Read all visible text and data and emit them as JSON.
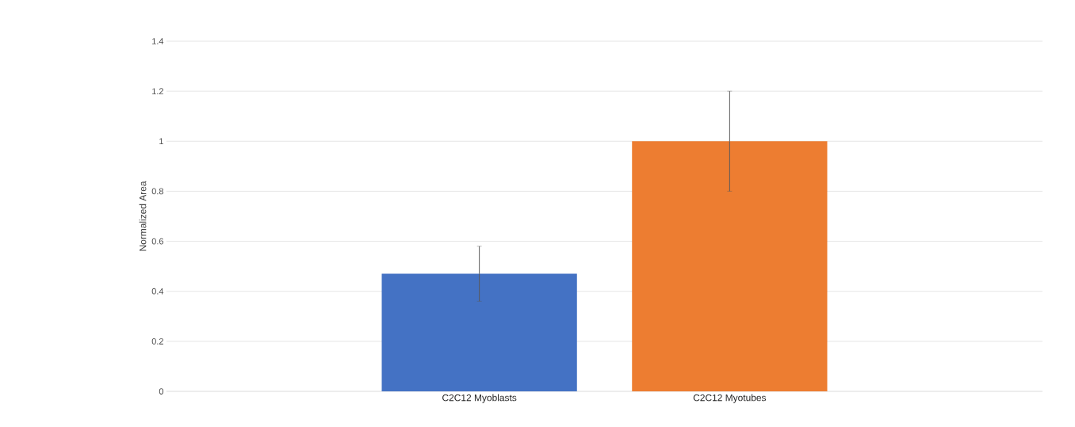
{
  "chart_data": {
    "type": "bar",
    "ylabel": "Normalized Area",
    "categories": [
      "C2C12 Myoblasts",
      "C2C12 Myotubes"
    ],
    "values": [
      0.47,
      1.0
    ],
    "errors": [
      0.11,
      0.2
    ],
    "colors": [
      "#4472c4",
      "#ed7d31"
    ],
    "ylim": [
      0,
      1.4
    ],
    "yticks": [
      0,
      0.2,
      0.4,
      0.6,
      0.8,
      1,
      1.2,
      1.4
    ],
    "grid": "y"
  }
}
